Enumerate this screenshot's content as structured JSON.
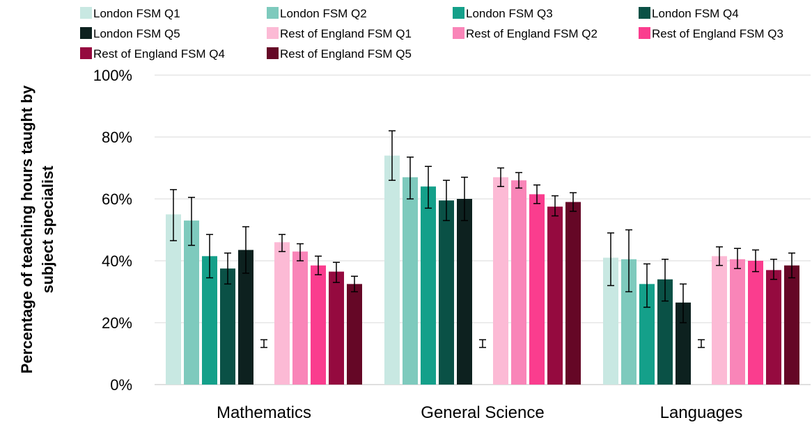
{
  "chart_data": {
    "type": "bar",
    "title": "",
    "xlabel": "",
    "ylabel": "Percentage of teaching hours taught by subject specialist",
    "ylabel_lines": [
      "Percentage of teaching hours taught by",
      "subject specialist"
    ],
    "ylim": [
      0,
      1
    ],
    "yticks": [
      "0%",
      "20%",
      "40%",
      "60%",
      "80%",
      "100%"
    ],
    "grid": true,
    "legend_position": "top",
    "categories": [
      "Mathematics",
      "General Science",
      "Languages"
    ],
    "series": [
      {
        "name": "London FSM Q1",
        "color": "#c8e8e2",
        "values": [
          0.55,
          0.74,
          0.41
        ],
        "err_low": [
          0.465,
          0.66,
          0.32
        ],
        "err_high": [
          0.63,
          0.82,
          0.49
        ]
      },
      {
        "name": "London FSM Q2",
        "color": "#7ecabd",
        "values": [
          0.53,
          0.67,
          0.405
        ],
        "err_low": [
          0.45,
          0.6,
          0.3
        ],
        "err_high": [
          0.605,
          0.735,
          0.5
        ]
      },
      {
        "name": "London FSM Q3",
        "color": "#14a08a",
        "values": [
          0.415,
          0.64,
          0.325
        ],
        "err_low": [
          0.345,
          0.57,
          0.25
        ],
        "err_high": [
          0.485,
          0.705,
          0.39
        ]
      },
      {
        "name": "London FSM Q4",
        "color": "#0a5146",
        "values": [
          0.375,
          0.595,
          0.34
        ],
        "err_low": [
          0.325,
          0.53,
          0.27
        ],
        "err_high": [
          0.425,
          0.66,
          0.405
        ]
      },
      {
        "name": "London FSM Q5",
        "color": "#0d211f",
        "values": [
          0.435,
          0.6,
          0.265
        ],
        "err_low": [
          0.36,
          0.53,
          0.2
        ],
        "err_high": [
          0.51,
          0.67,
          0.325
        ]
      },
      {
        "name": "",
        "color": "#000000",
        "values": [
          0.13,
          0.13,
          0.13
        ],
        "err_low": [
          0.12,
          0.12,
          0.12
        ],
        "err_high": [
          0.145,
          0.145,
          0.145
        ]
      },
      {
        "name": "Rest of England FSM Q1",
        "color": "#fcbad5",
        "values": [
          0.46,
          0.67,
          0.415
        ],
        "err_low": [
          0.43,
          0.64,
          0.385
        ],
        "err_high": [
          0.485,
          0.7,
          0.445
        ]
      },
      {
        "name": "Rest of England FSM Q2",
        "color": "#f985b8",
        "values": [
          0.43,
          0.66,
          0.405
        ],
        "err_low": [
          0.4,
          0.635,
          0.375
        ],
        "err_high": [
          0.455,
          0.685,
          0.44
        ]
      },
      {
        "name": "Rest of England FSM Q3",
        "color": "#fa3d8e",
        "values": [
          0.385,
          0.615,
          0.4
        ],
        "err_low": [
          0.355,
          0.585,
          0.365
        ],
        "err_high": [
          0.415,
          0.645,
          0.435
        ]
      },
      {
        "name": "Rest of England FSM Q4",
        "color": "#950a3f",
        "values": [
          0.365,
          0.575,
          0.37
        ],
        "err_low": [
          0.33,
          0.545,
          0.34
        ],
        "err_high": [
          0.395,
          0.61,
          0.405
        ]
      },
      {
        "name": "Rest of England FSM Q5",
        "color": "#650726",
        "values": [
          0.325,
          0.59,
          0.385
        ],
        "err_low": [
          0.3,
          0.56,
          0.345
        ],
        "err_high": [
          0.35,
          0.62,
          0.425
        ]
      }
    ]
  }
}
